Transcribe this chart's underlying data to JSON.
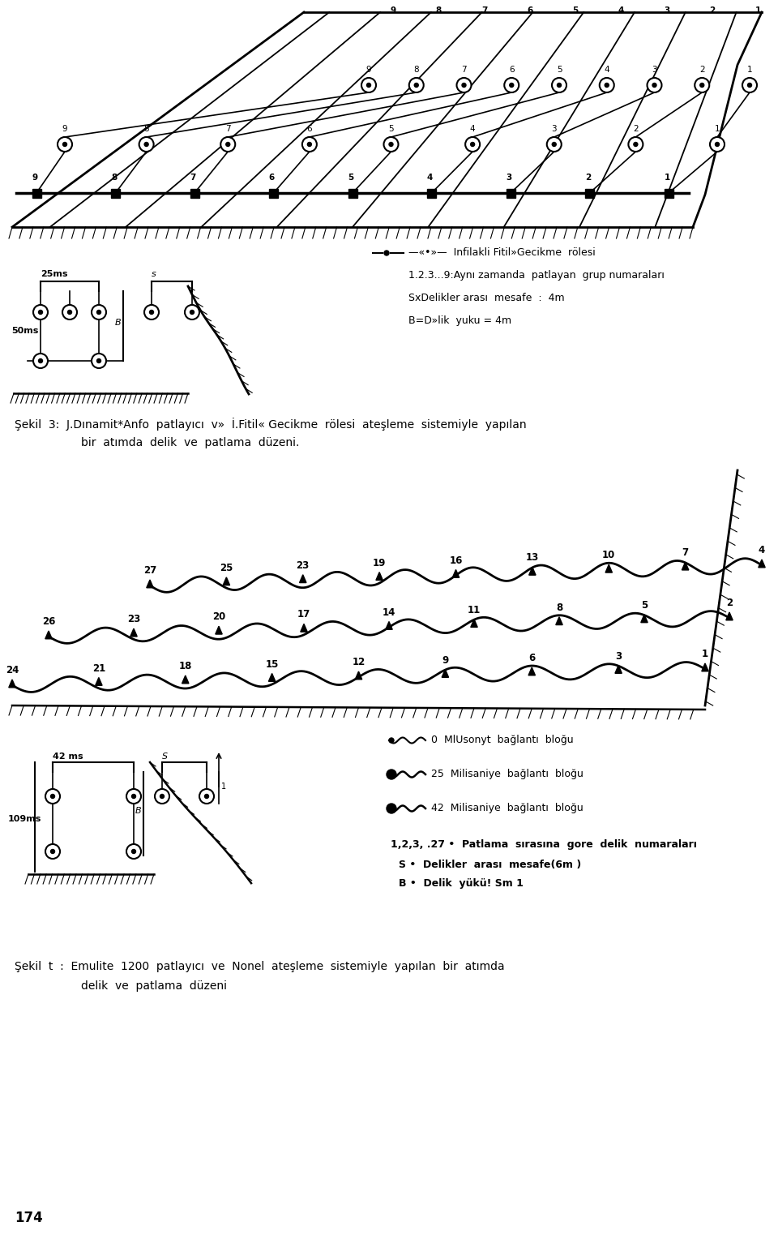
{
  "bg_color": "#ffffff",
  "text_color": "#000000",
  "fig_width": 9.6,
  "fig_height": 15.23,
  "legend1_lines": [
    "—«•»—  Infilakli Fitil»Gecikme  rölesi",
    "1.2.3...9:Aynı zamanda  patlayan  grup numaraları",
    "SxDelikler arası  mesafe  :  4m",
    "B=D»lik  yuku = 4m"
  ],
  "caption1": "Şekil  3:  J.Dınamit*Anfo  patlayıcı  v»  İ.Fitil« Gecikme  rölesi  ateşleme  sistemiyle  yapılan",
  "caption1b": "bir  atımda  delik  ve  patlama  düzeni.",
  "legend2_lines": [
    "0  MlUsonyt  bağlantı  bloğu",
    "25  Milisaniye  bağlantı  bloğu",
    "42  Milisaniye  bağlantı  bloğu",
    "1,2,3, .27 •  Patlama  sırasına  gore  delik  numaraları",
    "S •  Delikler  arası  mesafe(6m )",
    "B •  Delik  yükü! Sm 1"
  ],
  "caption2": "Şekil  t  :  Emulite  1200  patlayıcı  ve  Nonel  ateşleme  sistemiyle  yapılan  bir  atımda",
  "caption2b": "delik  ve  patlama  düzeni",
  "page_num": "174"
}
